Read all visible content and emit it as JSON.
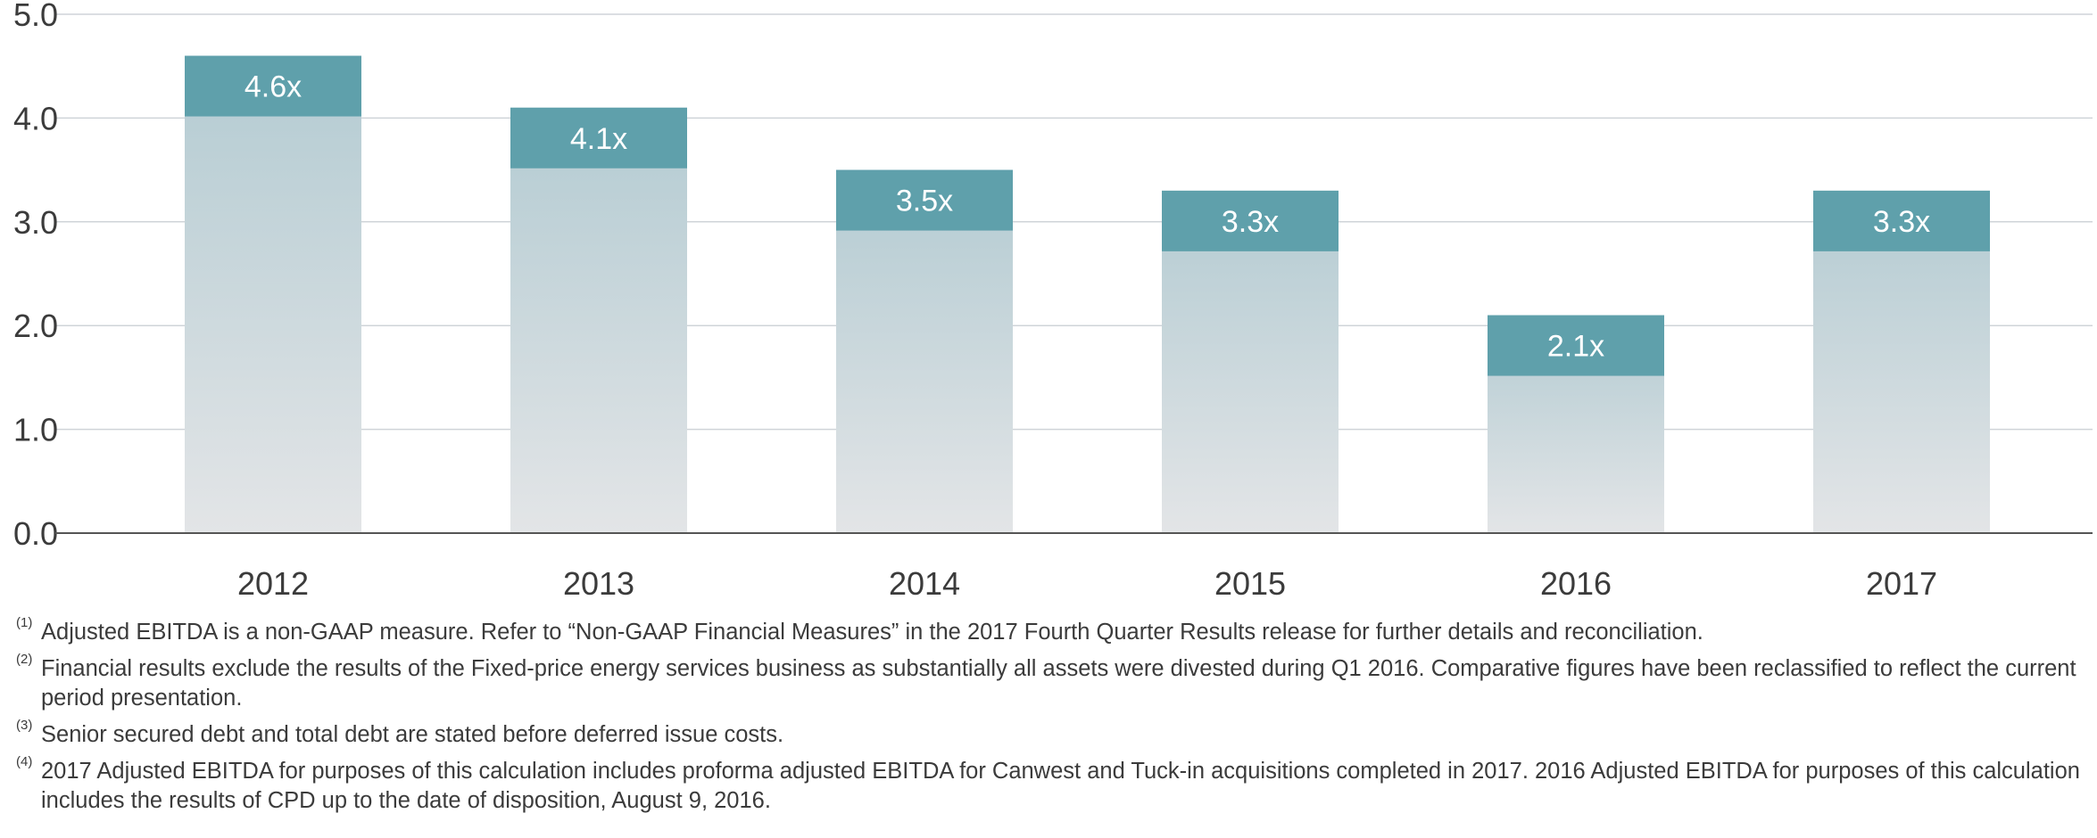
{
  "chart_data": {
    "type": "bar",
    "categories": [
      "2012",
      "2013",
      "2014",
      "2015",
      "2016",
      "2017"
    ],
    "values": [
      4.6,
      4.1,
      3.5,
      3.3,
      2.1,
      3.3
    ],
    "data_labels": [
      "4.6x",
      "4.1x",
      "3.5x",
      "3.3x",
      "2.1x",
      "3.3x"
    ],
    "yticks": [
      "0.0",
      "1.0",
      "2.0",
      "3.0",
      "4.0",
      "5.0"
    ],
    "ylim": [
      0,
      5
    ],
    "grid": true,
    "colors": {
      "bar_label_band": "#5fa0ab",
      "bar_top": "#b3cbd2",
      "bar_bottom": "#e3e5e7",
      "grid": "#cfd4d8",
      "axis": "#555555"
    }
  },
  "footnotes": [
    {
      "marker": "(1)",
      "text": "Adjusted EBITDA is a non-GAAP measure. Refer to “Non-GAAP Financial Measures” in the 2017 Fourth Quarter Results release for further details and reconciliation."
    },
    {
      "marker": "(2)",
      "text": "Financial results exclude the results of the Fixed-price energy services business as substantially all assets were divested during Q1 2016. Comparative figures have been reclassified to reflect the current period presentation."
    },
    {
      "marker": "(3)",
      "text": "Senior secured debt and total debt are stated before deferred issue costs."
    },
    {
      "marker": "(4)",
      "text": "2017 Adjusted EBITDA for purposes of this calculation includes proforma adjusted EBITDA for Canwest and Tuck-in acquisitions completed in 2017. 2016 Adjusted EBITDA for purposes of this calculation includes the results of CPD up to the date of disposition, August 9, 2016."
    }
  ]
}
